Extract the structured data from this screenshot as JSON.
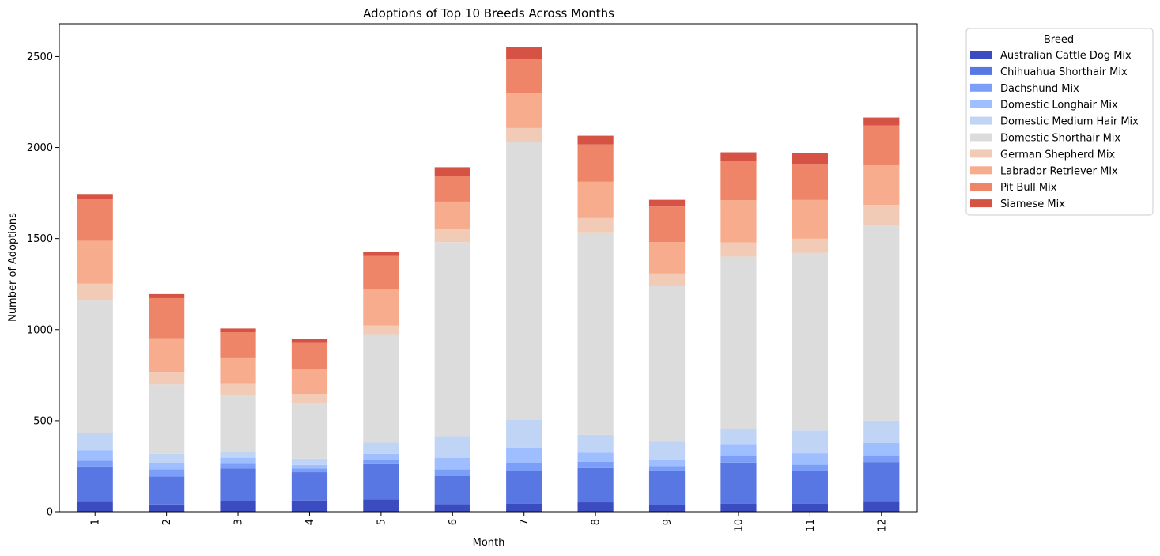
{
  "chart_data": {
    "type": "bar",
    "stacked": true,
    "title": "Adoptions of Top 10 Breeds Across Months",
    "xlabel": "Month",
    "ylabel": "Number of Adoptions",
    "categories": [
      "1",
      "2",
      "3",
      "4",
      "5",
      "6",
      "7",
      "8",
      "9",
      "10",
      "11",
      "12"
    ],
    "ylim": [
      0,
      2680
    ],
    "yticks": [
      0,
      500,
      1000,
      1500,
      2000,
      2500
    ],
    "legend": {
      "title": "Breed",
      "placement": "outside-top-right"
    },
    "series": [
      {
        "name": "Australian Cattle Dog Mix",
        "color": "#3b4cc0",
        "values": [
          55,
          40,
          57,
          62,
          68,
          42,
          45,
          52,
          38,
          45,
          45,
          55
        ]
      },
      {
        "name": "Chihuahua Shorthair Mix",
        "color": "#5977e3",
        "values": [
          193,
          153,
          180,
          155,
          193,
          155,
          180,
          188,
          188,
          225,
          178,
          218
        ]
      },
      {
        "name": "Dachshund Mix",
        "color": "#7b9ff9",
        "values": [
          32,
          40,
          27,
          20,
          27,
          35,
          42,
          35,
          25,
          40,
          35,
          37
        ]
      },
      {
        "name": "Domestic Longhair Mix",
        "color": "#9ebeff",
        "values": [
          58,
          35,
          33,
          20,
          30,
          65,
          85,
          50,
          35,
          58,
          63,
          68
        ]
      },
      {
        "name": "Domestic Medium Hair Mix",
        "color": "#c0d4f5",
        "values": [
          95,
          50,
          33,
          35,
          62,
          118,
          155,
          97,
          100,
          88,
          125,
          122
        ]
      },
      {
        "name": "Domestic Shorthair Mix",
        "color": "#dddcdc",
        "values": [
          730,
          380,
          310,
          303,
          595,
          1065,
          1525,
          1112,
          855,
          945,
          975,
          1075
        ]
      },
      {
        "name": "German Shepherd Mix",
        "color": "#f2cbb7",
        "values": [
          90,
          70,
          65,
          52,
          48,
          75,
          75,
          78,
          67,
          78,
          78,
          110
        ]
      },
      {
        "name": "Labrador Retriever Mix",
        "color": "#f7ac8e",
        "values": [
          235,
          185,
          138,
          135,
          200,
          148,
          190,
          200,
          173,
          232,
          213,
          222
        ]
      },
      {
        "name": "Pit Bull Mix",
        "color": "#ee8468",
        "values": [
          232,
          220,
          143,
          145,
          182,
          142,
          188,
          205,
          195,
          215,
          198,
          215
        ]
      },
      {
        "name": "Siamese Mix",
        "color": "#d65244",
        "values": [
          25,
          22,
          20,
          22,
          23,
          47,
          65,
          48,
          37,
          48,
          60,
          43
        ]
      }
    ]
  }
}
